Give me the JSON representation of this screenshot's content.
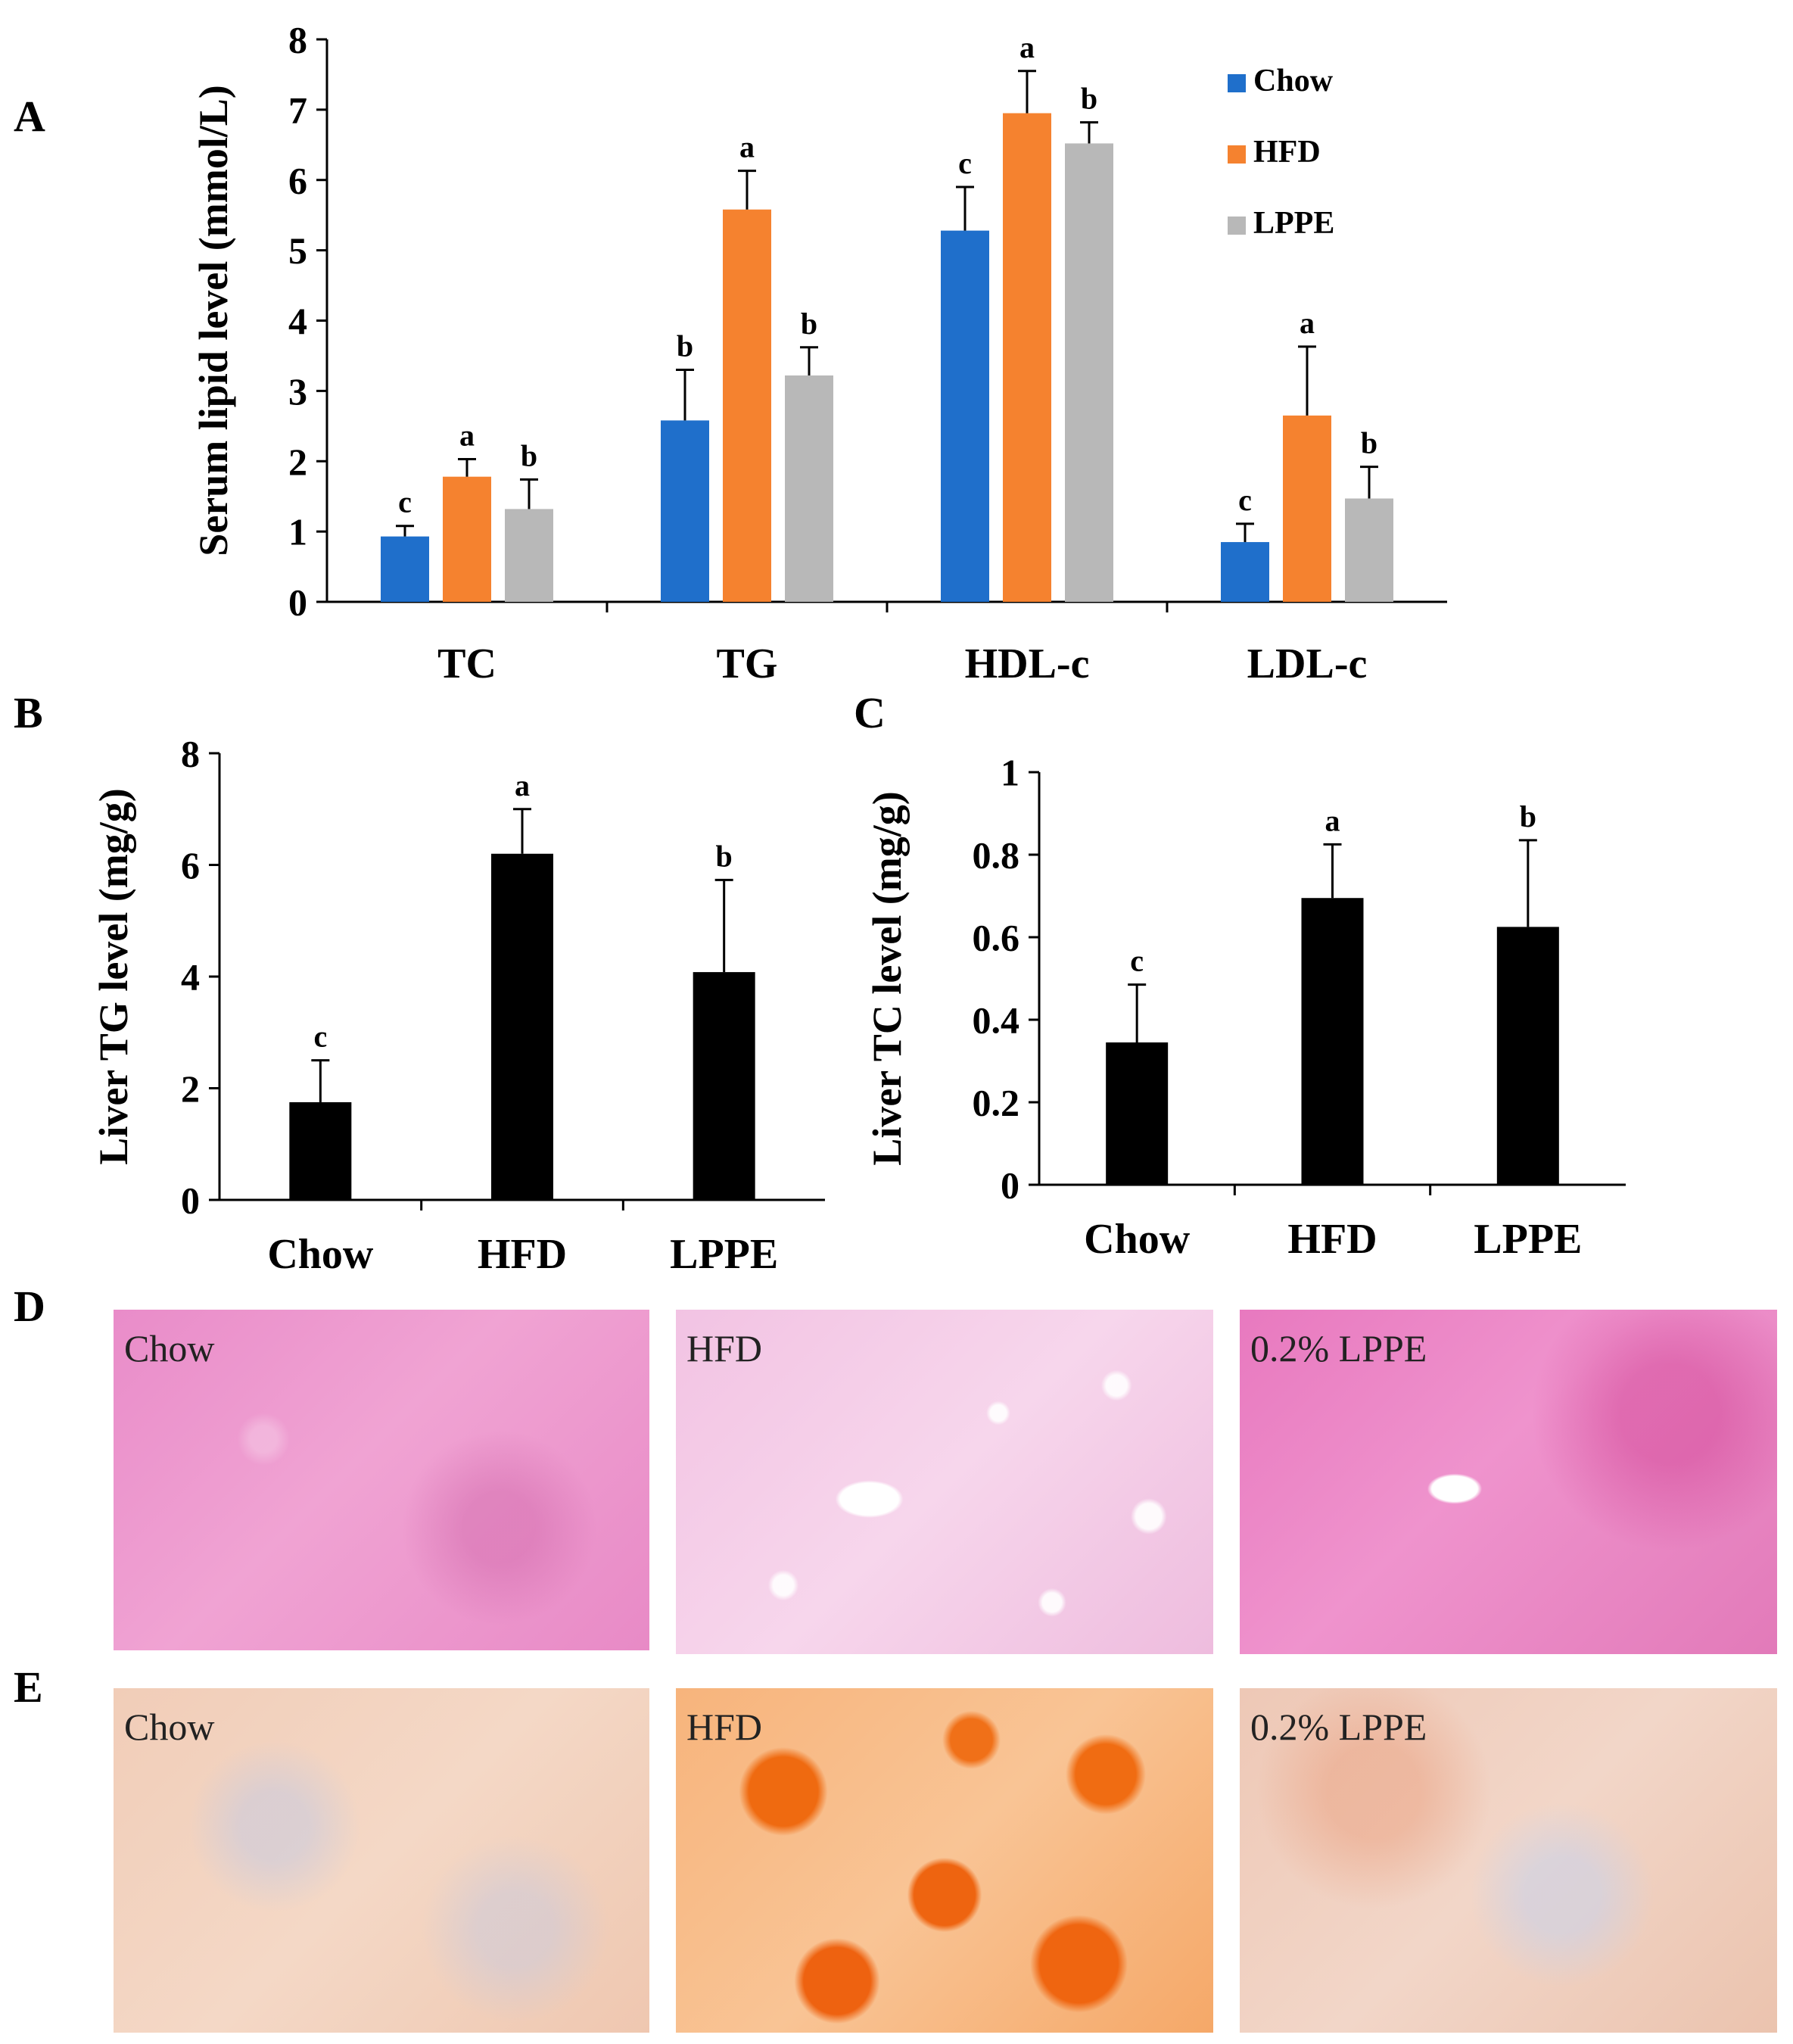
{
  "panels": {
    "A": "A",
    "B": "B",
    "C": "C",
    "D": "D",
    "E": "E"
  },
  "colors": {
    "Chow": "#1f6fcb",
    "HFD": "#f5822f",
    "LPPE": "#b8b8b8",
    "mono": "#000000"
  },
  "chart_data": [
    {
      "panel": "A",
      "type": "bar",
      "ylabel": "Serum lipid level (mmol/L)",
      "ylim": [
        0,
        8
      ],
      "yticks": [
        "0",
        "1",
        "2",
        "3",
        "4",
        "5",
        "6",
        "7",
        "8"
      ],
      "categories": [
        "TC",
        "TG",
        "HDL-c",
        "LDL-c"
      ],
      "legend_position": "top-right",
      "series": [
        {
          "name": "Chow",
          "values": [
            0.93,
            2.58,
            5.28,
            0.85
          ],
          "errors": [
            0.15,
            0.72,
            0.62,
            0.26
          ],
          "letters": [
            "c",
            "b",
            "c",
            "c"
          ]
        },
        {
          "name": "HFD",
          "values": [
            1.78,
            5.58,
            6.95,
            2.65
          ],
          "errors": [
            0.25,
            0.55,
            0.6,
            0.98
          ],
          "letters": [
            "a",
            "a",
            "a",
            "a"
          ]
        },
        {
          "name": "LPPE",
          "values": [
            1.32,
            3.22,
            6.52,
            1.47
          ],
          "errors": [
            0.42,
            0.4,
            0.3,
            0.45
          ],
          "letters": [
            "b",
            "b",
            "b",
            "b"
          ]
        }
      ]
    },
    {
      "panel": "B",
      "type": "bar",
      "ylabel": "Liver TG level (mg/g)",
      "ylim": [
        0,
        8
      ],
      "yticks": [
        "0",
        "2",
        "4",
        "6",
        "8"
      ],
      "categories": [
        "Chow",
        "HFD",
        "LPPE"
      ],
      "values": [
        1.75,
        6.2,
        4.08
      ],
      "errors": [
        0.75,
        0.8,
        1.65
      ],
      "letters": [
        "c",
        "a",
        "b"
      ]
    },
    {
      "panel": "C",
      "type": "bar",
      "ylabel": "Liver TC level (mg/g)",
      "ylim": [
        0,
        1
      ],
      "yticks": [
        "0",
        "0.2",
        "0.4",
        "0.6",
        "0.8",
        "1"
      ],
      "categories": [
        "Chow",
        "HFD",
        "LPPE"
      ],
      "values": [
        0.345,
        0.695,
        0.625
      ],
      "errors": [
        0.14,
        0.13,
        0.21
      ],
      "letters": [
        "c",
        "a",
        "b"
      ]
    }
  ],
  "micrographs": {
    "D": [
      "Chow",
      "HFD",
      "0.2% LPPE"
    ],
    "E": [
      "Chow",
      "HFD",
      "0.2% LPPE"
    ]
  }
}
